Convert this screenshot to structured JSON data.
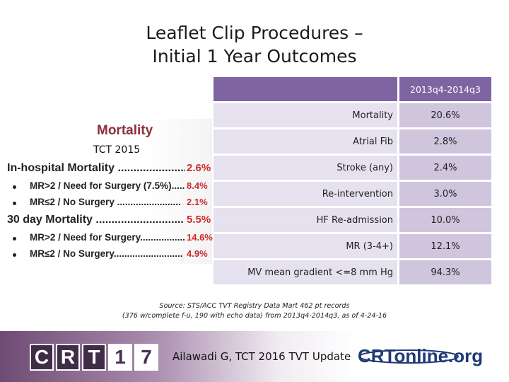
{
  "title": {
    "line1": "Leaflet Clip Procedures –",
    "line2": "Initial 1 Year Outcomes"
  },
  "table": {
    "header": "2013q4-2014q3",
    "rows": [
      {
        "label": "Mortality",
        "value": "20.6%"
      },
      {
        "label": "Atrial Fib",
        "value": "2.8%"
      },
      {
        "label": "Stroke (any)",
        "value": "2.4%"
      },
      {
        "label": "Re-intervention",
        "value": "3.0%"
      },
      {
        "label": "HF Re-admission",
        "value": "10.0%"
      },
      {
        "label": "MR (3-4+)",
        "value": "12.1%"
      },
      {
        "label": "MV mean gradient <=8 mm Hg",
        "value": "94.3%"
      }
    ]
  },
  "panel": {
    "heading": "Mortality",
    "tct": "TCT 2015",
    "rows": [
      {
        "label": "In-hospital Mortality ........................",
        "value": "2.6%"
      },
      {
        "label": "MR>2 / Need for Surgery (7.5%)........",
        "value": "8.4%"
      },
      {
        "label": "MR≤2 / No Surgery ........................",
        "value": "2.1%"
      },
      {
        "label": "30 day Mortality ............................",
        "value": "5.5%"
      },
      {
        "label": "MR>2 / Need for Surgery...................",
        "value": "14.6%"
      },
      {
        "label": "MR≤2 / No Surgery..........................",
        "value": "4.9%"
      }
    ]
  },
  "source": {
    "line1": "Source: STS/ACC TVT Registry Data Mart 462 pt records",
    "line2": "(376 w/complete f-u, 190 with echo data) from 2013q4-2014q3, as of 4-24-16"
  },
  "footer": {
    "logo_letters": [
      "C",
      "R",
      "T",
      "1",
      "7"
    ],
    "text": "Ailawadi G, TCT 2016 TVT Update",
    "online_logo": "CRTonline.org"
  },
  "colors": {
    "accent": "#7f64a2",
    "cell_light": "#e6e1ee",
    "cell_dark": "#cfc5dd",
    "mortality_red": "#cc2a2a",
    "heading": "#8a2f3a"
  },
  "icons": {
    "crt_logo": "crt17-logo",
    "online_logo": "crtonline-logo"
  }
}
